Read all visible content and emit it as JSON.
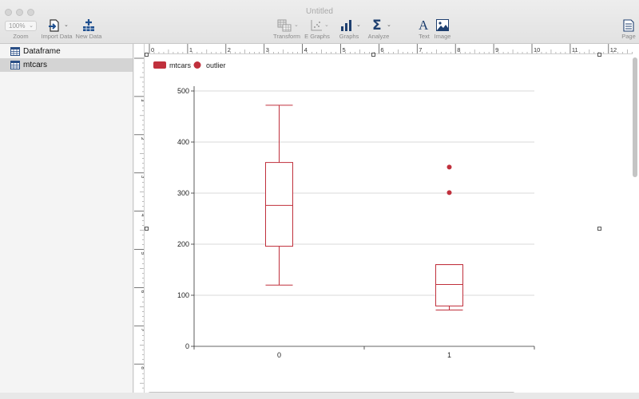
{
  "window": {
    "title": "Untitled"
  },
  "toolbar": {
    "zoom_value": "100%",
    "zoom_label": "Zoom",
    "import_label": "Import Data",
    "newdata_label": "New Data",
    "transform_label": "Transform",
    "egraphs_label": "E Graphs",
    "graphs_label": "Graphs",
    "analyze_label": "Analyze",
    "text_label": "Text",
    "image_label": "Image",
    "page_label": "Page"
  },
  "sidebar": {
    "items": [
      {
        "label": "Dataframe",
        "selected": false
      },
      {
        "label": "mtcars",
        "selected": true
      }
    ]
  },
  "ruler": {
    "top_ticks": [
      "0",
      "1",
      "2",
      "3",
      "4",
      "5",
      "6",
      "7",
      "8",
      "9",
      "10",
      "11",
      "12"
    ],
    "left_ticks": [
      "1",
      "2",
      "3",
      "4",
      "5",
      "6",
      "7",
      "8"
    ]
  },
  "chart_data": {
    "type": "box",
    "categories": [
      "0",
      "1"
    ],
    "series": [
      {
        "name": "mtcars",
        "boxes": [
          {
            "category": "0",
            "min": 120,
            "q1": 196,
            "median": 276,
            "q3": 360,
            "max": 472,
            "outliers": []
          },
          {
            "category": "1",
            "min": 71,
            "q1": 79,
            "median": 121,
            "q3": 160,
            "max": 160,
            "outliers": [
              301,
              351
            ]
          }
        ]
      }
    ],
    "legend": [
      {
        "label": "mtcars",
        "shape": "rect"
      },
      {
        "label": "outlier",
        "shape": "circle"
      }
    ],
    "legend_position": "top-left",
    "y_ticks": [
      "0",
      "100",
      "200",
      "300",
      "400",
      "500"
    ],
    "ylim": [
      0,
      500
    ],
    "grid": true,
    "color": "#c0303c"
  }
}
